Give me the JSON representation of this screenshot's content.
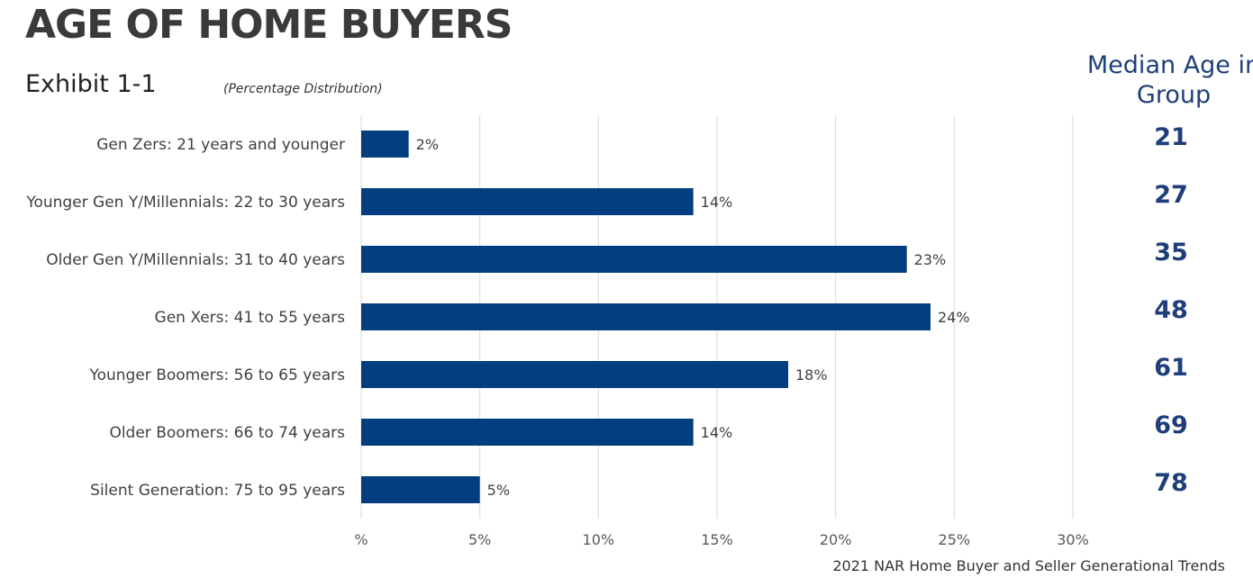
{
  "header": {
    "title": "AGE OF HOME BUYERS",
    "exhibit": "Exhibit 1-1",
    "subtitle": "(Percentage Distribution)",
    "median_header": "Median Age in Group"
  },
  "source": "2021 NAR Home Buyer and Seller Generational Trends",
  "chart_data": {
    "type": "bar",
    "orientation": "horizontal",
    "categories": [
      "Gen Zers: 21 years and younger",
      "Younger Gen Y/Millennials: 22 to 30 years",
      "Older Gen Y/Millennials: 31 to 40 years",
      "Gen Xers: 41 to 55 years",
      "Younger Boomers: 56 to 65 years",
      "Older Boomers: 66 to 74 years",
      "Silent Generation: 75 to 95 years"
    ],
    "values": [
      2,
      14,
      23,
      24,
      18,
      14,
      5
    ],
    "data_labels": [
      "2%",
      "14%",
      "23%",
      "24%",
      "18%",
      "14%",
      "5%"
    ],
    "median_ages": [
      "21",
      "27",
      "35",
      "48",
      "61",
      "69",
      "78"
    ],
    "x_ticks": [
      0,
      5,
      10,
      15,
      20,
      25,
      30
    ],
    "x_tick_labels": [
      "%",
      "5%",
      "10%",
      "15%",
      "20%",
      "25%",
      "30%"
    ],
    "xlim": [
      0,
      30
    ],
    "grid": "vertical",
    "bar_color": "#013e7f",
    "median_color": "#1f3f7a"
  }
}
